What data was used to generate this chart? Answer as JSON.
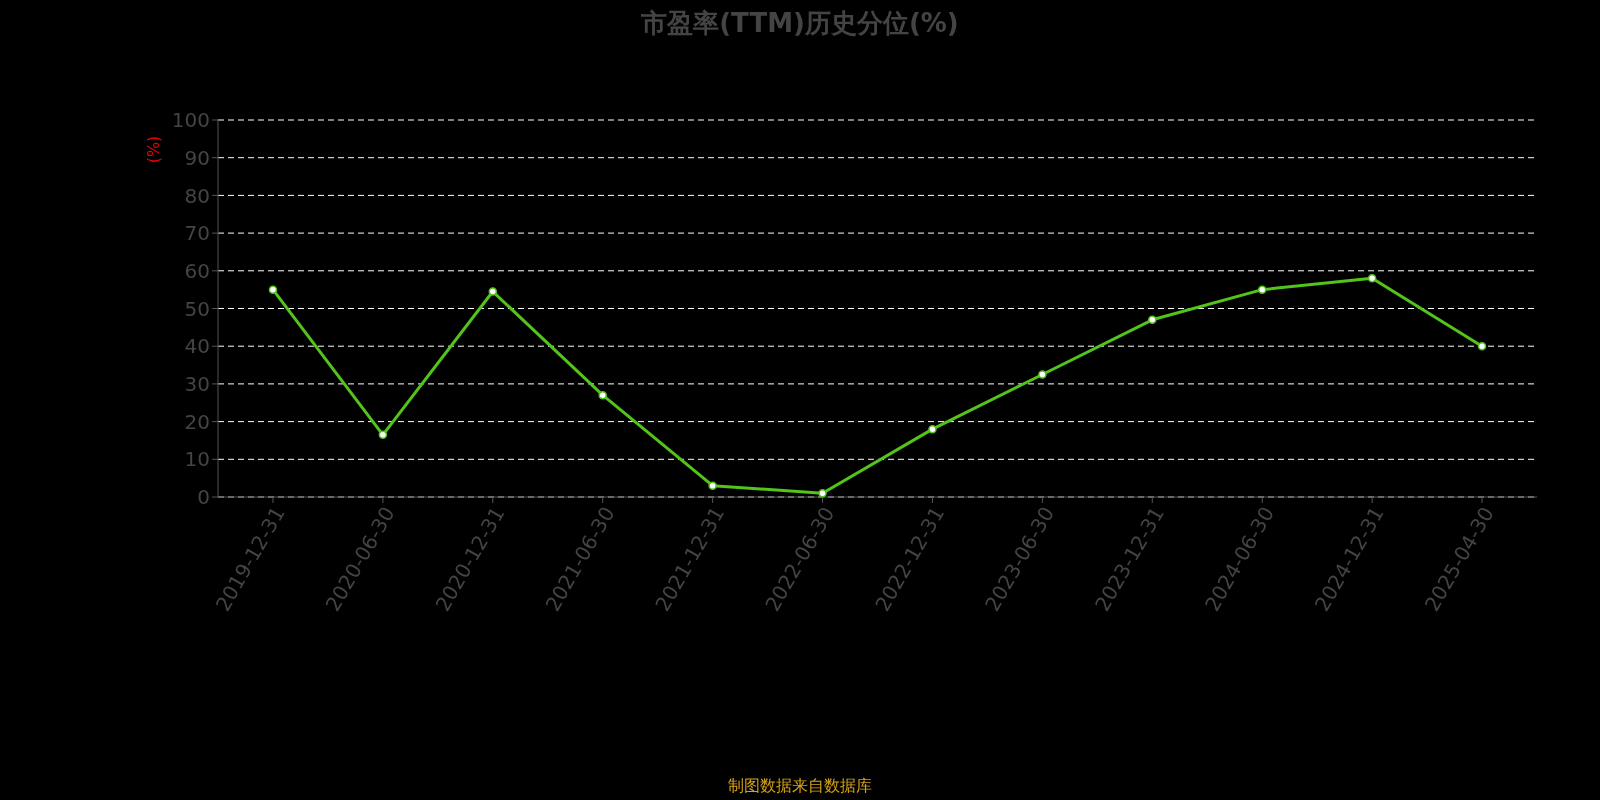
{
  "chart_data": {
    "type": "line",
    "title": "市盈率(TTM)历史分位(%)",
    "ylabel": "(%)",
    "categories": [
      "2019-12-31",
      "2020-06-30",
      "2020-12-31",
      "2021-06-30",
      "2021-12-31",
      "2022-06-30",
      "2022-12-31",
      "2023-06-30",
      "2023-12-31",
      "2024-06-30",
      "2024-12-31",
      "2025-04-30"
    ],
    "series": [
      {
        "color": "#52c41a",
        "values": [
          55,
          16.5,
          54.5,
          27,
          3,
          1,
          18,
          32.5,
          47,
          55,
          58,
          40
        ]
      }
    ],
    "ylim": [
      0,
      100
    ],
    "yticks": [
      0,
      10,
      20,
      30,
      40,
      50,
      60,
      70,
      80,
      90,
      100
    ],
    "grid": "y",
    "legend": false,
    "marker": "circle",
    "line_style": "solid",
    "annotations": [
      "制图数据来自数据库"
    ]
  }
}
